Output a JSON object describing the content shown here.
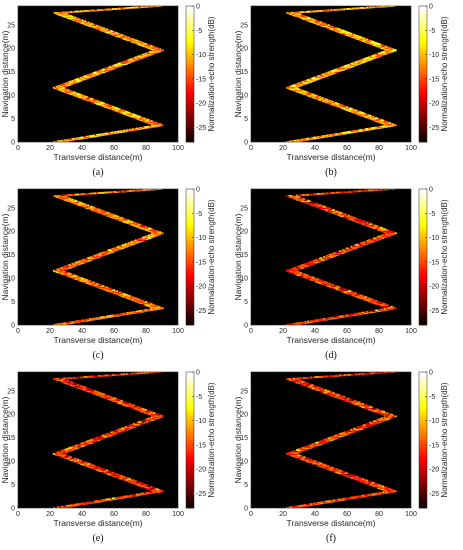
{
  "chart_data": [
    {
      "type": "heatmap",
      "panel_label": "(a)",
      "xlabel": "Transverse distance(m)",
      "ylabel": "Navigation distance(m)",
      "colorbar_label": "Normalization-echo strength(dB)",
      "xlim": [
        0,
        100
      ],
      "ylim": [
        0,
        29
      ],
      "clim": [
        -28,
        0
      ],
      "x_ticks": [
        "0",
        "20",
        "40",
        "60",
        "80",
        "100"
      ],
      "y_ticks": [
        "0",
        "5",
        "10",
        "15",
        "20",
        "25"
      ],
      "colorbar_ticks": [
        "0",
        "-5",
        "-10",
        "-15",
        "-20",
        "-25"
      ],
      "track": {
        "x_min": 25,
        "x_max": 88,
        "width": 6,
        "y_start": 0,
        "turns": [
          3.5,
          11.5,
          19.5,
          27.5
        ],
        "y_end": 29
      },
      "colormap": "hot"
    },
    {
      "type": "heatmap",
      "panel_label": "(b)",
      "xlabel": "Transverse distance(m)",
      "ylabel": "Navigation distance(m)",
      "colorbar_label": "Normalization-echo strength(dB)",
      "xlim": [
        0,
        100
      ],
      "ylim": [
        0,
        29
      ],
      "clim": [
        -28,
        0
      ],
      "x_ticks": [
        "0",
        "20",
        "40",
        "60",
        "80",
        "100"
      ],
      "y_ticks": [
        "0",
        "5",
        "10",
        "15",
        "20",
        "25"
      ],
      "colorbar_ticks": [
        "0",
        "-5",
        "-10",
        "-15",
        "-20",
        "-25"
      ],
      "track": {
        "x_min": 25,
        "x_max": 88,
        "width": 6,
        "y_start": 0,
        "turns": [
          3.5,
          11.5,
          19.5,
          27.5
        ],
        "y_end": 29
      },
      "colormap": "hot"
    },
    {
      "type": "heatmap",
      "panel_label": "(c)",
      "xlabel": "Transverse distance(m)",
      "ylabel": "Navigation distance(m)",
      "colorbar_label": "Normalization-echo strength(dB)",
      "xlim": [
        0,
        100
      ],
      "ylim": [
        0,
        29
      ],
      "clim": [
        -28,
        0
      ],
      "x_ticks": [
        "0",
        "20",
        "40",
        "60",
        "80",
        "100"
      ],
      "y_ticks": [
        "0",
        "5",
        "10",
        "15",
        "20",
        "25"
      ],
      "colorbar_ticks": [
        "0",
        "-5",
        "-10",
        "-15",
        "-20",
        "-25"
      ],
      "track": {
        "x_min": 25,
        "x_max": 88,
        "width": 6,
        "y_start": 0,
        "turns": [
          3.5,
          11.5,
          19.5,
          27.5
        ],
        "y_end": 29
      },
      "colormap": "hot"
    },
    {
      "type": "heatmap",
      "panel_label": "(d)",
      "xlabel": "Transverse distance(m)",
      "ylabel": "Navigation distance(m)",
      "colorbar_label": "Normalization-echo strength(dB)",
      "xlim": [
        0,
        100
      ],
      "ylim": [
        0,
        29
      ],
      "clim": [
        -28,
        0
      ],
      "x_ticks": [
        "0",
        "20",
        "40",
        "60",
        "80",
        "100"
      ],
      "y_ticks": [
        "0",
        "5",
        "10",
        "15",
        "20",
        "25"
      ],
      "colorbar_ticks": [
        "0",
        "-5",
        "-10",
        "-15",
        "-20",
        "-25"
      ],
      "track": {
        "x_min": 25,
        "x_max": 88,
        "width": 6,
        "y_start": 0,
        "turns": [
          3.5,
          11.5,
          19.5,
          27.5
        ],
        "y_end": 29
      },
      "colormap": "hot"
    },
    {
      "type": "heatmap",
      "panel_label": "(e)",
      "xlabel": "Transverse distance(m)",
      "ylabel": "Navigation distance(m)",
      "colorbar_label": "Normalization-echo strength(dB)",
      "xlim": [
        0,
        100
      ],
      "ylim": [
        0,
        29
      ],
      "clim": [
        -28,
        0
      ],
      "x_ticks": [
        "0",
        "20",
        "40",
        "60",
        "80",
        "100"
      ],
      "y_ticks": [
        "0",
        "5",
        "10",
        "15",
        "20",
        "25"
      ],
      "colorbar_ticks": [
        "0",
        "-5",
        "-10",
        "-15",
        "-20",
        "-25"
      ],
      "track": {
        "x_min": 25,
        "x_max": 88,
        "width": 6,
        "y_start": 0,
        "turns": [
          3.5,
          11.5,
          19.5,
          27.5
        ],
        "y_end": 29
      },
      "colormap": "hot"
    },
    {
      "type": "heatmap",
      "panel_label": "(f)",
      "xlabel": "Transverse distance(m)",
      "ylabel": "Navigation distance(m)",
      "colorbar_label": "Normalization-echo strength(dB)",
      "xlim": [
        0,
        100
      ],
      "ylim": [
        0,
        29
      ],
      "clim": [
        -28,
        0
      ],
      "x_ticks": [
        "0",
        "20",
        "40",
        "60",
        "80",
        "100"
      ],
      "y_ticks": [
        "0",
        "5",
        "10",
        "15",
        "20",
        "25"
      ],
      "colorbar_ticks": [
        "0",
        "-5",
        "-10",
        "-15",
        "-20",
        "-25"
      ],
      "track": {
        "x_min": 25,
        "x_max": 88,
        "width": 6,
        "y_start": 0,
        "turns": [
          3.5,
          11.5,
          19.5,
          27.5
        ],
        "y_end": 29
      },
      "colormap": "hot"
    }
  ]
}
